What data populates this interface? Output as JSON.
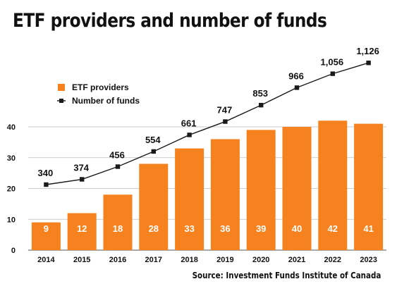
{
  "chart_data": {
    "type": "bar",
    "title": "ETF providers and number of funds",
    "source": "Source: Investment Funds Institute of Canada",
    "categories": [
      "2014",
      "2015",
      "2016",
      "2017",
      "2018",
      "2019",
      "2020",
      "2021",
      "2022",
      "2023"
    ],
    "ylim": [
      0,
      40
    ],
    "yticks": [
      "0",
      "10",
      "20",
      "30",
      "40"
    ],
    "grid": true,
    "legend_position": "top-left",
    "series": [
      {
        "name": "ETF providers",
        "kind": "bar",
        "color": "#F5821F",
        "values": [
          9,
          12,
          18,
          28,
          33,
          36,
          39,
          40,
          42,
          41
        ],
        "labels": [
          "9",
          "12",
          "18",
          "28",
          "33",
          "36",
          "39",
          "40",
          "42",
          "41"
        ]
      },
      {
        "name": "Number of funds",
        "kind": "line",
        "color": "#1a1a1a",
        "values": [
          340,
          374,
          456,
          554,
          661,
          747,
          853,
          966,
          1056,
          1126
        ],
        "labels": [
          "340",
          "374",
          "456",
          "554",
          "661",
          "747",
          "853",
          "966",
          "1,056",
          "1,126"
        ]
      }
    ]
  }
}
